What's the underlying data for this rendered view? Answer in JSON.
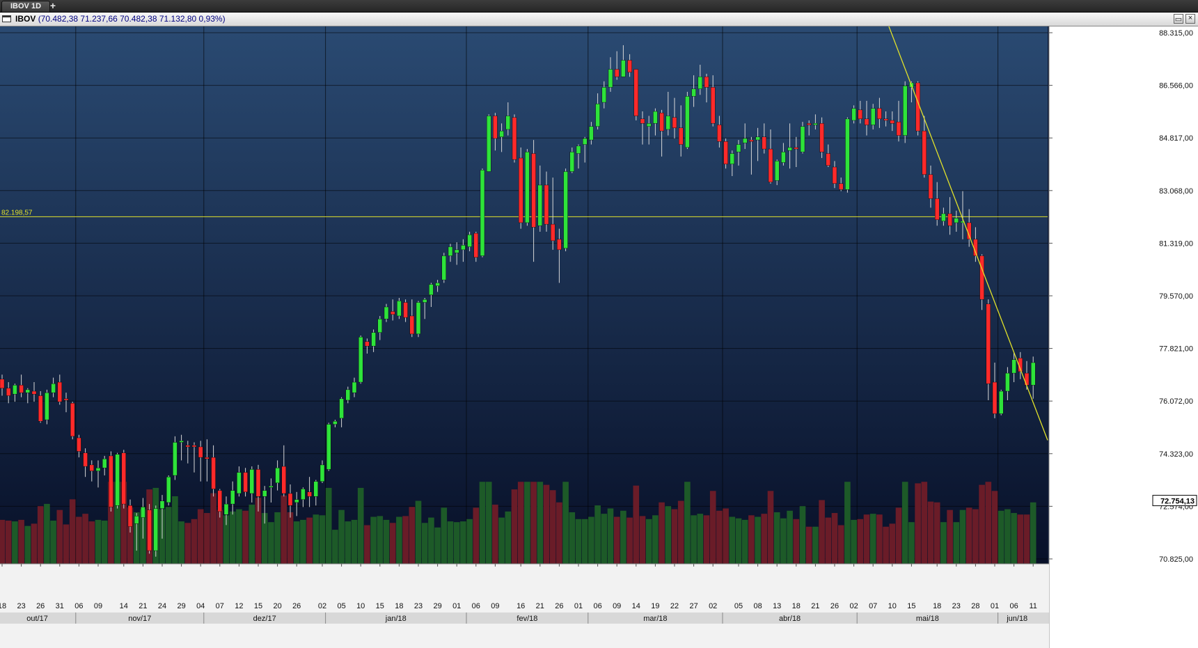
{
  "tabbar": {
    "tab_label": "IBOV 1D",
    "add_icon": "+"
  },
  "header": {
    "symbol": "IBOV",
    "quote": "(70.482,38  71.237,66  70.482,38  71.132,80  0,93%)",
    "maximize_icon": "maximize-icon",
    "close_icon": "close-icon"
  },
  "colors": {
    "up": "#2ee33a",
    "down": "#ff2a2a",
    "volume_up": "#1d5a28",
    "volume_down": "#6a1c28",
    "line": "#e2e22a",
    "bg_top": "#2a4a72",
    "bg_bottom": "#081028"
  },
  "chart_data": {
    "type": "candlestick",
    "symbol": "IBOV",
    "timeframe": "1D",
    "x_tick_labels": [
      "18",
      "23",
      "26",
      "31",
      "06",
      "09",
      "14",
      "21",
      "24",
      "29",
      "04",
      "07",
      "12",
      "15",
      "20",
      "26",
      "02",
      "05",
      "10",
      "15",
      "18",
      "23",
      "29",
      "01",
      "06",
      "09",
      "16",
      "21",
      "26",
      "01",
      "06",
      "09",
      "14",
      "19",
      "22",
      "27",
      "02",
      "05",
      "08",
      "13",
      "18",
      "21",
      "26",
      "02",
      "07",
      "10",
      "15",
      "18",
      "23",
      "28",
      "01",
      "06",
      "11"
    ],
    "month_labels": [
      "out/17",
      "nov/17",
      "dez/17",
      "jan/18",
      "fev/18",
      "mar/18",
      "abr/18",
      "mai/18",
      "jun/18"
    ],
    "y_tick_labels": [
      "88.315,00",
      "86.566,00",
      "84.817,00",
      "83.068,00",
      "81.319,00",
      "79.570,00",
      "77.821,00",
      "76.072,00",
      "74.323,00",
      "72.574,00",
      "70.825,00"
    ],
    "ylim": [
      70825,
      88315
    ],
    "grid": true,
    "horizontal_line": {
      "value": 82198.57,
      "label": "82.198,57"
    },
    "last_price_label": "72.754,13",
    "last_price": 72754.13,
    "trendline": [
      {
        "x": "2018-05-10",
        "y": 89000
      },
      {
        "x": "2018-06-13",
        "y": 74770
      }
    ],
    "candles": [
      [
        "2017-10-16",
        76800,
        76950,
        76250,
        76500
      ],
      [
        "2017-10-17",
        76500,
        76700,
        76000,
        76250
      ],
      [
        "2017-10-18",
        76300,
        76650,
        76050,
        76600
      ],
      [
        "2017-10-19",
        76600,
        76950,
        76200,
        76350
      ],
      [
        "2017-10-20",
        76350,
        76500,
        76000,
        76450
      ],
      [
        "2017-10-23",
        76400,
        76700,
        76050,
        76300
      ],
      [
        "2017-10-24",
        76250,
        76400,
        75350,
        75400
      ],
      [
        "2017-10-25",
        75450,
        76450,
        75300,
        76350
      ],
      [
        "2017-10-26",
        76350,
        76850,
        76200,
        76650
      ],
      [
        "2017-10-27",
        76700,
        76950,
        75950,
        76050
      ],
      [
        "2017-10-30",
        76150,
        76350,
        75700,
        76100
      ],
      [
        "2017-10-31",
        76000,
        76050,
        74800,
        74900
      ],
      [
        "2017-11-01",
        74850,
        74950,
        74200,
        74400
      ],
      [
        "2017-11-03",
        74350,
        74500,
        73550,
        73900
      ],
      [
        "2017-11-06",
        73950,
        74100,
        73400,
        73750
      ],
      [
        "2017-11-07",
        73750,
        74100,
        73200,
        73850
      ],
      [
        "2017-11-08",
        73850,
        74250,
        73600,
        74150
      ],
      [
        "2017-11-09",
        74250,
        74400,
        72400,
        72550
      ],
      [
        "2017-11-10",
        72600,
        74350,
        72500,
        74300
      ],
      [
        "2017-11-13",
        74350,
        74450,
        72500,
        72650
      ],
      [
        "2017-11-14",
        72600,
        72800,
        71700,
        71900
      ],
      [
        "2017-11-16",
        72000,
        72350,
        71100,
        72250
      ],
      [
        "2017-11-17",
        72200,
        72850,
        71500,
        72550
      ],
      [
        "2017-11-20",
        72450,
        72650,
        71000,
        71100
      ],
      [
        "2017-11-21",
        71100,
        72600,
        70900,
        72500
      ],
      [
        "2017-11-22",
        72500,
        72950,
        71500,
        72750
      ],
      [
        "2017-11-23",
        72700,
        73600,
        72600,
        73550
      ],
      [
        "2017-11-24",
        73600,
        74900,
        73450,
        74700
      ],
      [
        "2017-11-27",
        74700,
        74950,
        74100,
        74750
      ],
      [
        "2017-11-28",
        74600,
        74750,
        74000,
        74550
      ],
      [
        "2017-11-29",
        74600,
        74700,
        73700,
        74550
      ],
      [
        "2017-11-30",
        74550,
        74750,
        73400,
        74200
      ],
      [
        "2017-12-01",
        74200,
        74800,
        73400,
        74150
      ],
      [
        "2017-12-04",
        74200,
        74600,
        72900,
        73150
      ],
      [
        "2017-12-05",
        73100,
        73150,
        72200,
        72400
      ],
      [
        "2017-12-06",
        72300,
        72900,
        71950,
        72650
      ],
      [
        "2017-12-07",
        72650,
        73400,
        72300,
        73100
      ],
      [
        "2017-12-08",
        73000,
        73900,
        72900,
        73700
      ],
      [
        "2017-12-11",
        73700,
        73850,
        72900,
        73050
      ],
      [
        "2017-12-12",
        73000,
        73900,
        72700,
        73800
      ],
      [
        "2017-12-13",
        73800,
        73950,
        72400,
        72900
      ],
      [
        "2017-12-14",
        72900,
        73250,
        72000,
        73100
      ],
      [
        "2017-12-15",
        73200,
        73500,
        72700,
        73250
      ],
      [
        "2017-12-18",
        73350,
        74100,
        73100,
        73850
      ],
      [
        "2017-12-19",
        73900,
        74600,
        72900,
        73000
      ],
      [
        "2017-12-20",
        73000,
        73300,
        72200,
        72600
      ],
      [
        "2017-12-21",
        72700,
        73050,
        72250,
        72800
      ],
      [
        "2017-12-22",
        72800,
        73200,
        72550,
        73150
      ],
      [
        "2017-12-26",
        73050,
        73550,
        72550,
        72900
      ],
      [
        "2017-12-27",
        72900,
        73450,
        72600,
        73400
      ],
      [
        "2017-12-28",
        73400,
        74100,
        73350,
        73950
      ],
      [
        "2018-01-02",
        73800,
        75350,
        73750,
        75300
      ],
      [
        "2018-01-03",
        75300,
        75450,
        75200,
        75400
      ],
      [
        "2018-01-04",
        75500,
        76200,
        75200,
        76150
      ],
      [
        "2018-01-05",
        76100,
        76550,
        76000,
        76450
      ],
      [
        "2018-01-08",
        76350,
        76850,
        76200,
        76700
      ],
      [
        "2018-01-09",
        76700,
        78250,
        76650,
        78200
      ],
      [
        "2018-01-10",
        78050,
        78150,
        77650,
        77900
      ],
      [
        "2018-01-11",
        77900,
        78450,
        77700,
        78350
      ],
      [
        "2018-01-12",
        78350,
        78900,
        78100,
        78800
      ],
      [
        "2018-01-15",
        78800,
        79300,
        78700,
        79200
      ],
      [
        "2018-01-16",
        79050,
        79450,
        78750,
        78950
      ],
      [
        "2018-01-17",
        78900,
        79500,
        78800,
        79400
      ],
      [
        "2018-01-18",
        79350,
        79450,
        78700,
        78850
      ],
      [
        "2018-01-19",
        78900,
        79450,
        78200,
        78300
      ],
      [
        "2018-01-22",
        78300,
        79400,
        78200,
        79350
      ],
      [
        "2018-01-23",
        79350,
        79500,
        78800,
        79450
      ],
      [
        "2018-01-24",
        79600,
        80000,
        79200,
        79950
      ],
      [
        "2018-01-25",
        79900,
        80100,
        79700,
        80000
      ],
      [
        "2018-01-26",
        80100,
        81000,
        80000,
        80900
      ],
      [
        "2018-01-29",
        80900,
        81300,
        80700,
        81200
      ],
      [
        "2018-01-30",
        81000,
        81350,
        80600,
        81100
      ],
      [
        "2018-01-31",
        81100,
        81450,
        80700,
        81250
      ],
      [
        "2018-02-01",
        81200,
        81700,
        81050,
        81600
      ],
      [
        "2018-02-02",
        81650,
        81700,
        80700,
        80850
      ],
      [
        "2018-02-05",
        80900,
        83800,
        80850,
        83750
      ],
      [
        "2018-02-06",
        83700,
        85600,
        83700,
        85550
      ],
      [
        "2018-02-07",
        85550,
        85650,
        84400,
        84800
      ],
      [
        "2018-02-08",
        84850,
        85300,
        84350,
        85050
      ],
      [
        "2018-02-09",
        85100,
        86000,
        84900,
        85550
      ],
      [
        "2018-02-13",
        85500,
        85600,
        84000,
        84100
      ],
      [
        "2018-02-14",
        84150,
        84500,
        81800,
        82000
      ],
      [
        "2018-02-15",
        82000,
        84450,
        81900,
        84350
      ],
      [
        "2018-02-16",
        84300,
        84750,
        80700,
        81850
      ],
      [
        "2018-02-19",
        81900,
        83900,
        81700,
        83250
      ],
      [
        "2018-02-20",
        83250,
        83700,
        81700,
        81950
      ],
      [
        "2018-02-21",
        81950,
        83500,
        81100,
        81400
      ],
      [
        "2018-02-22",
        81450,
        81800,
        80000,
        81100
      ],
      [
        "2018-02-23",
        81150,
        83800,
        81050,
        83700
      ],
      [
        "2018-02-26",
        83700,
        84500,
        83650,
        84350
      ],
      [
        "2018-02-27",
        84300,
        84600,
        83800,
        84550
      ],
      [
        "2018-02-28",
        84600,
        84850,
        84000,
        84800
      ],
      [
        "2018-03-01",
        84750,
        85350,
        84600,
        85200
      ],
      [
        "2018-03-02",
        85200,
        86300,
        85100,
        85950
      ],
      [
        "2018-03-05",
        86000,
        86700,
        85800,
        86500
      ],
      [
        "2018-03-06",
        86500,
        87500,
        86350,
        87100
      ],
      [
        "2018-03-07",
        87100,
        87700,
        86750,
        86850
      ],
      [
        "2018-03-08",
        86850,
        87900,
        86850,
        87400
      ],
      [
        "2018-03-09",
        87400,
        87600,
        86850,
        87000
      ],
      [
        "2018-03-12",
        87100,
        87100,
        85400,
        85550
      ],
      [
        "2018-03-13",
        85450,
        85700,
        84600,
        85300
      ],
      [
        "2018-03-14",
        85200,
        85550,
        84600,
        85300
      ],
      [
        "2018-03-15",
        85300,
        85800,
        84900,
        85700
      ],
      [
        "2018-03-16",
        85650,
        85750,
        84200,
        85050
      ],
      [
        "2018-03-19",
        85100,
        86350,
        84900,
        85550
      ],
      [
        "2018-03-20",
        85500,
        86150,
        84800,
        85150
      ],
      [
        "2018-03-21",
        85150,
        85900,
        84200,
        84600
      ],
      [
        "2018-03-22",
        84500,
        86350,
        84450,
        86200
      ],
      [
        "2018-03-23",
        86200,
        86900,
        85850,
        86450
      ],
      [
        "2018-03-26",
        86450,
        87250,
        86250,
        86850
      ],
      [
        "2018-03-27",
        86850,
        86950,
        86000,
        86500
      ],
      [
        "2018-03-28",
        86500,
        86900,
        85200,
        85300
      ],
      [
        "2018-03-29",
        85250,
        85550,
        84500,
        84700
      ],
      [
        "2018-04-02",
        84700,
        84800,
        83800,
        83950
      ],
      [
        "2018-04-03",
        83950,
        84400,
        83550,
        84300
      ],
      [
        "2018-04-04",
        84350,
        84750,
        83900,
        84600
      ],
      [
        "2018-04-05",
        84650,
        85300,
        84450,
        84800
      ],
      [
        "2018-04-06",
        84750,
        84850,
        83600,
        84700
      ],
      [
        "2018-04-09",
        84750,
        85150,
        84050,
        84850
      ],
      [
        "2018-04-10",
        84850,
        85300,
        84300,
        84450
      ],
      [
        "2018-04-11",
        84450,
        85100,
        83300,
        83350
      ],
      [
        "2018-04-12",
        83400,
        84100,
        83250,
        84050
      ],
      [
        "2018-04-13",
        84000,
        84650,
        83900,
        84350
      ],
      [
        "2018-04-16",
        84400,
        85300,
        83800,
        84500
      ],
      [
        "2018-04-17",
        84500,
        84850,
        83850,
        84450
      ],
      [
        "2018-04-18",
        84350,
        85350,
        84300,
        85200
      ],
      [
        "2018-04-19",
        85300,
        85400,
        84900,
        85250
      ],
      [
        "2018-04-20",
        85250,
        85600,
        85100,
        85300
      ],
      [
        "2018-04-23",
        85300,
        85500,
        84150,
        84350
      ],
      [
        "2018-04-24",
        84300,
        84600,
        83850,
        83900
      ],
      [
        "2018-04-25",
        83850,
        84050,
        83150,
        83300
      ],
      [
        "2018-04-26",
        83300,
        83500,
        83050,
        83100
      ],
      [
        "2018-04-27",
        83100,
        85500,
        83000,
        85450
      ],
      [
        "2018-04-30",
        85400,
        85900,
        85300,
        85800
      ],
      [
        "2018-05-02",
        85750,
        86050,
        85300,
        85450
      ],
      [
        "2018-05-03",
        85450,
        86050,
        84900,
        85250
      ],
      [
        "2018-05-04",
        85250,
        85950,
        85100,
        85800
      ],
      [
        "2018-05-07",
        85800,
        86150,
        85150,
        85450
      ],
      [
        "2018-05-08",
        85450,
        85700,
        85200,
        85400
      ],
      [
        "2018-05-09",
        85400,
        85700,
        85050,
        85300
      ],
      [
        "2018-05-10",
        85350,
        86050,
        84700,
        84900
      ],
      [
        "2018-05-11",
        84900,
        86700,
        84650,
        86550
      ],
      [
        "2018-05-14",
        86500,
        86700,
        86000,
        86650
      ],
      [
        "2018-05-15",
        86650,
        86700,
        84900,
        85050
      ],
      [
        "2018-05-16",
        85050,
        85550,
        83500,
        83600
      ],
      [
        "2018-05-17",
        83600,
        83900,
        82500,
        82800
      ],
      [
        "2018-05-18",
        82800,
        83350,
        81900,
        82100
      ],
      [
        "2018-05-21",
        82050,
        82500,
        81900,
        82300
      ],
      [
        "2018-05-22",
        82300,
        82850,
        81600,
        81900
      ],
      [
        "2018-05-23",
        82000,
        82400,
        81700,
        82150
      ],
      [
        "2018-05-24",
        82000,
        83050,
        81450,
        82050
      ],
      [
        "2018-05-25",
        82000,
        82450,
        81200,
        81450
      ],
      [
        "2018-05-28",
        81450,
        81850,
        80700,
        80900
      ],
      [
        "2018-05-29",
        80900,
        80950,
        79100,
        79450
      ],
      [
        "2018-05-30",
        79300,
        79450,
        76100,
        76650
      ],
      [
        "2018-05-31",
        76700,
        77350,
        75500,
        75650
      ],
      [
        "2018-06-01",
        75650,
        76450,
        75600,
        76400
      ],
      [
        "2018-06-04",
        76400,
        77200,
        76100,
        77000
      ],
      [
        "2018-06-05",
        77000,
        77700,
        76700,
        77450
      ],
      [
        "2018-06-06",
        77500,
        77700,
        76800,
        77050
      ],
      [
        "2018-06-07",
        77000,
        77400,
        76450,
        76600
      ],
      [
        "2018-06-08",
        76600,
        77550,
        76150,
        77350
      ]
    ],
    "volume_color_order": "matches candle direction"
  }
}
